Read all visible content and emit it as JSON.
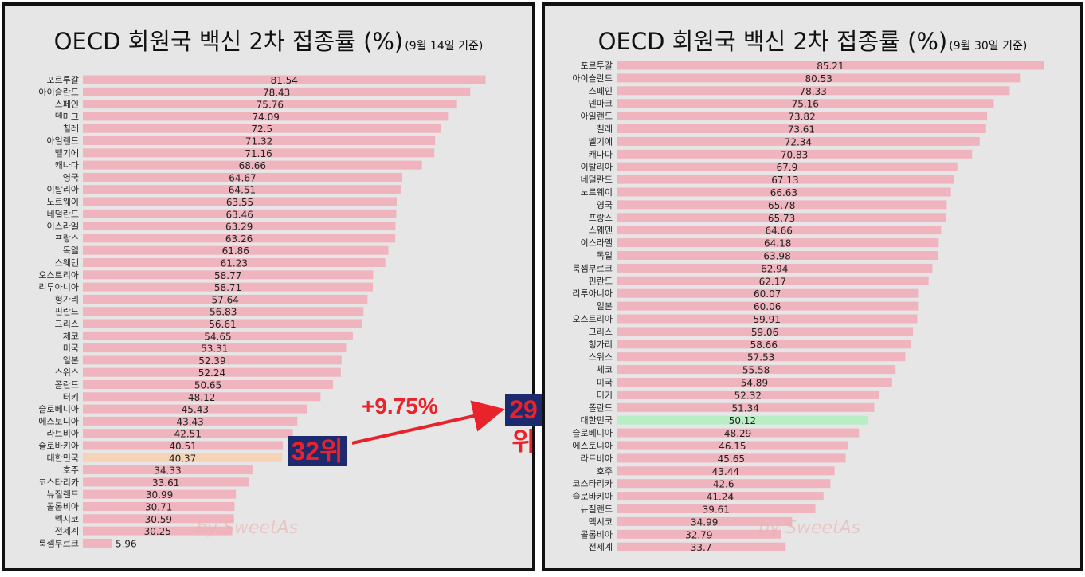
{
  "annotation": {
    "rank_before": "32위",
    "rank_after": "29위",
    "change": "+9.75%",
    "watermark": "by SweetAs"
  },
  "colors": {
    "bar": "#efb4be",
    "korea_before": "#f7d3b6",
    "korea_after": "#b9eec5",
    "badge_bg": "#1e2a6e",
    "badge_text": "#e8232b"
  },
  "chart_data": [
    {
      "type": "bar",
      "orientation": "horizontal",
      "title": "OECD 회원국 백신 2차 접종률 (%)",
      "subtitle": "(9월 14일 기준)",
      "highlight": "대한민국",
      "categories": [
        "포르투갈",
        "아이슬란드",
        "스페인",
        "덴마크",
        "칠레",
        "아일랜드",
        "벨기에",
        "캐나다",
        "영국",
        "이탈리아",
        "노르웨이",
        "네덜란드",
        "이스라엘",
        "프랑스",
        "독일",
        "스웨덴",
        "오스트리아",
        "리투아니아",
        "헝가리",
        "핀란드",
        "그리스",
        "체코",
        "미국",
        "일본",
        "스위스",
        "폴란드",
        "터키",
        "슬로베니아",
        "에스토니아",
        "라트비아",
        "슬로바키아",
        "대한민국",
        "호주",
        "코스타리카",
        "뉴질랜드",
        "콜롬비아",
        "멕시코",
        "전세계",
        "룩셈부르크"
      ],
      "values": [
        81.54,
        78.43,
        75.76,
        74.09,
        72.5,
        71.32,
        71.16,
        68.66,
        64.67,
        64.51,
        63.55,
        63.46,
        63.29,
        63.26,
        61.86,
        61.23,
        58.77,
        58.71,
        57.64,
        56.83,
        56.61,
        54.65,
        53.31,
        52.39,
        52.24,
        50.65,
        48.12,
        45.43,
        43.43,
        42.51,
        40.51,
        40.37,
        34.33,
        33.61,
        30.99,
        30.71,
        30.59,
        30.25,
        5.96
      ],
      "value_labels": [
        "81.54",
        "78.43",
        "75.76",
        "74.09",
        "72.5",
        "71.32",
        "71.16",
        "68.66",
        "64.67",
        "64.51",
        "63.55",
        "63.46",
        "63.29",
        "63.26",
        "61.86",
        "61.23",
        "58.77",
        "58.71",
        "57.64",
        "56.83",
        "56.61",
        "54.65",
        "53.31",
        "52.39",
        "52.24",
        "50.65",
        "48.12",
        "45.43",
        "43.43",
        "42.51",
        "40.51",
        "40.37",
        "34.33",
        "33.61",
        "30.99",
        "30.71",
        "30.59",
        "30.25",
        "5.96"
      ]
    },
    {
      "type": "bar",
      "orientation": "horizontal",
      "title": "OECD 회원국 백신 2차 접종률 (%)",
      "subtitle": "(9월 30일 기준)",
      "highlight": "대한민국",
      "categories": [
        "포르투갈",
        "아이슬란드",
        "스페인",
        "덴마크",
        "아일랜드",
        "칠레",
        "벨기에",
        "캐나다",
        "이탈리아",
        "네덜란드",
        "노르웨이",
        "영국",
        "프랑스",
        "스웨덴",
        "이스라엘",
        "독일",
        "룩셈부르크",
        "핀란드",
        "리투아니아",
        "일본",
        "오스트리아",
        "그리스",
        "헝가리",
        "스위스",
        "체코",
        "미국",
        "터키",
        "폴란드",
        "대한민국",
        "슬로베니아",
        "에스토니아",
        "라트비아",
        "호주",
        "코스타리카",
        "슬로바키아",
        "뉴질랜드",
        "멕시코",
        "콜롬비아",
        "전세계"
      ],
      "values": [
        85.21,
        80.53,
        78.33,
        75.16,
        73.82,
        73.61,
        72.34,
        70.83,
        67.9,
        67.13,
        66.63,
        65.78,
        65.73,
        64.66,
        64.18,
        63.98,
        62.94,
        62.17,
        60.07,
        60.06,
        59.91,
        59.06,
        58.66,
        57.53,
        55.58,
        54.89,
        52.32,
        51.34,
        50.12,
        48.29,
        46.15,
        45.65,
        43.44,
        42.6,
        41.24,
        39.61,
        34.99,
        32.79,
        33.7
      ],
      "value_labels": [
        "85.21",
        "80.53",
        "78.33",
        "75.16",
        "73.82",
        "73.61",
        "72.34",
        "70.83",
        "67.9",
        "67.13",
        "66.63",
        "65.78",
        "65.73",
        "64.66",
        "64.18",
        "63.98",
        "62.94",
        "62.17",
        "60.07",
        "60.06",
        "59.91",
        "59.06",
        "58.66",
        "57.53",
        "55.58",
        "54.89",
        "52.32",
        "51.34",
        "50.12",
        "48.29",
        "46.15",
        "45.65",
        "43.44",
        "42.6",
        "41.24",
        "39.61",
        "34.99",
        "32.79",
        "33.7"
      ]
    }
  ]
}
